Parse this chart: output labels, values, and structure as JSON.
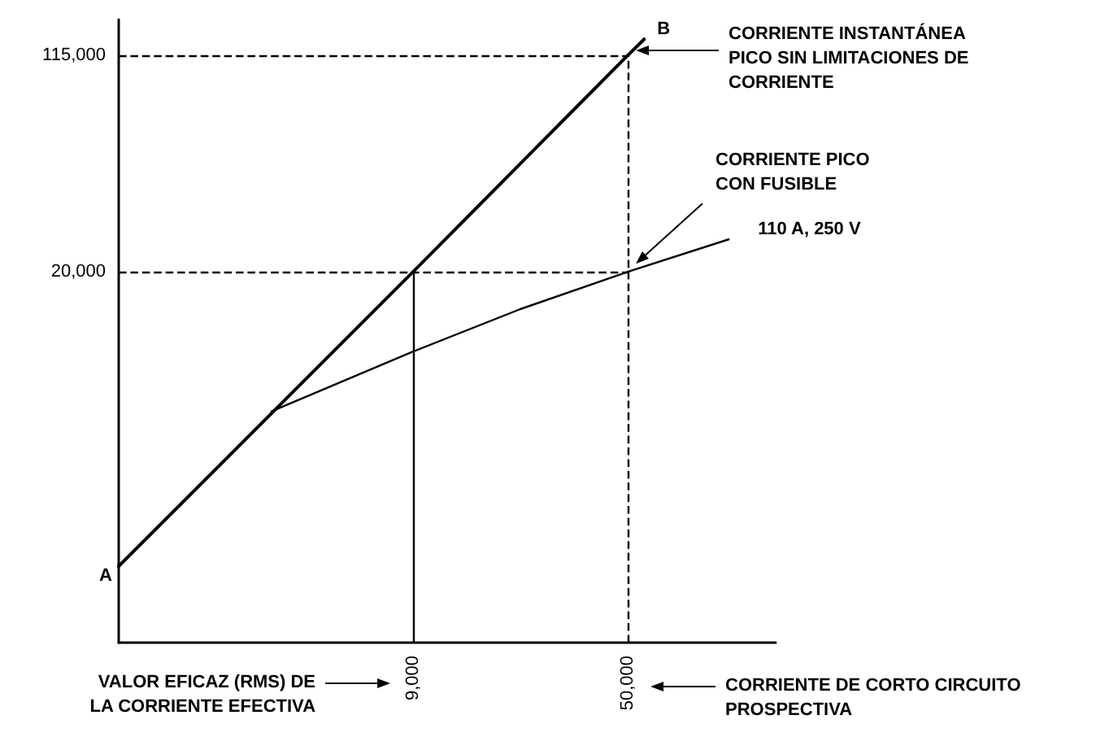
{
  "chart_data": {
    "type": "line",
    "log": "xy",
    "xlim": [
      857,
      163000
    ],
    "ylim": [
      1000,
      153600
    ],
    "xticks": [
      {
        "value": 9000,
        "label": "9,000"
      },
      {
        "value": 50000,
        "label": "50,000"
      }
    ],
    "yticks": [
      {
        "value": 20000,
        "label": "20,000"
      },
      {
        "value": 115000,
        "label": "115,000"
      }
    ],
    "grid": false,
    "legend": false,
    "marker": "none",
    "line_style": "solid",
    "series": [
      {
        "color": "#000000",
        "x": [
          857,
          9000,
          50000,
          57000
        ],
        "values": [
          1855,
          20000,
          115000,
          131000
        ]
      },
      {
        "name": "110 A, 250 V",
        "color": "#000000",
        "x": [
          2906,
          9000,
          21200,
          50000,
          112000
        ],
        "values": [
          6480,
          10500,
          14800,
          20000,
          26000
        ]
      }
    ],
    "ref_lines": [
      {
        "axis": "y",
        "value": 115000,
        "color": "#000000",
        "line_style": "dashed"
      },
      {
        "axis": "y",
        "value": 20000,
        "color": "#000000",
        "line_style": "dashed"
      },
      {
        "axis": "x",
        "value": 9000,
        "color": "#000000",
        "line_style": "solid"
      },
      {
        "axis": "x",
        "value": 50000,
        "color": "#000000",
        "line_style": "dashed"
      }
    ],
    "annotations": [
      "CORRIENTE INSTANTÁNEA\nPICO SIN LIMITACIONES DE\nCORRIENTE",
      "CORRIENTE PICO\nCON FUSIBLE",
      {
        "text": "A",
        "x": 857,
        "y": 1855
      },
      {
        "text": "B",
        "x": 57000,
        "y": 131000
      },
      "VALOR EFICAZ (RMS) DE\nLA CORRIENTE EFECTIVA",
      "CORRIENTE DE CORTO CIRCUITO\nPROSPECTIVA"
    ]
  }
}
